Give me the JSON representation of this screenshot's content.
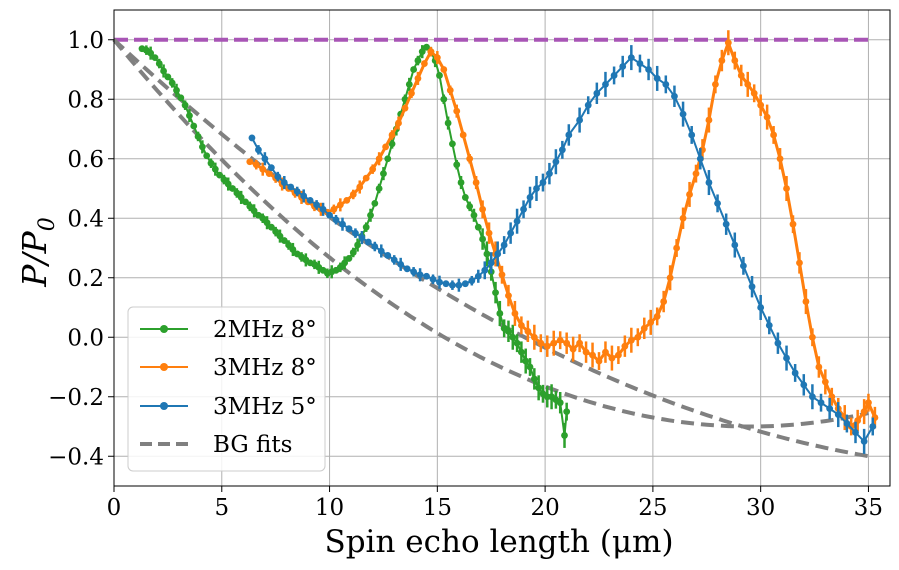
{
  "chart_data": {
    "type": "line",
    "xlabel": "Spin echo length (μm)",
    "ylabel": "P/P0",
    "ylabel_parts": {
      "main": "P/P",
      "sub": "0"
    },
    "xlim": [
      0,
      36
    ],
    "ylim": [
      -0.5,
      1.1
    ],
    "xticks": [
      0,
      5,
      10,
      15,
      20,
      25,
      30,
      35
    ],
    "yticks": [
      1.0,
      0.8,
      0.6,
      0.4,
      0.2,
      0.0,
      -0.2,
      -0.4
    ],
    "xtick_labels": [
      "0",
      "5",
      "10",
      "15",
      "20",
      "25",
      "30",
      "35"
    ],
    "ytick_labels": [
      "1.0",
      "0.8",
      "0.6",
      "0.4",
      "0.2",
      "0.0",
      "−0.2",
      "−0.4"
    ],
    "grid": true,
    "legend_position": "lower-left",
    "reference_line": {
      "y": 1.0,
      "x_range": [
        0,
        35
      ],
      "color": "#a855b5",
      "style": "dashed"
    },
    "series": [
      {
        "name": "2MHz 8°",
        "color": "#2ca02c",
        "points": [
          [
            1.3,
            0.97
          ],
          [
            1.5,
            0.965
          ],
          [
            1.7,
            0.955
          ],
          [
            1.9,
            0.94
          ],
          [
            2.1,
            0.92
          ],
          [
            2.3,
            0.895
          ],
          [
            2.5,
            0.875
          ],
          [
            2.7,
            0.855
          ],
          [
            2.9,
            0.83
          ],
          [
            3.1,
            0.805
          ],
          [
            3.3,
            0.78
          ],
          [
            3.5,
            0.745
          ],
          [
            3.7,
            0.71
          ],
          [
            3.9,
            0.675
          ],
          [
            4.1,
            0.64
          ],
          [
            4.3,
            0.61
          ],
          [
            4.5,
            0.585
          ],
          [
            4.7,
            0.565
          ],
          [
            4.9,
            0.545
          ],
          [
            5.1,
            0.53
          ],
          [
            5.3,
            0.515
          ],
          [
            5.5,
            0.5
          ],
          [
            5.7,
            0.485
          ],
          [
            5.9,
            0.47
          ],
          [
            6.1,
            0.455
          ],
          [
            6.3,
            0.44
          ],
          [
            6.5,
            0.425
          ],
          [
            6.7,
            0.41
          ],
          [
            6.9,
            0.4
          ],
          [
            7.1,
            0.385
          ],
          [
            7.3,
            0.37
          ],
          [
            7.5,
            0.355
          ],
          [
            7.7,
            0.34
          ],
          [
            7.9,
            0.325
          ],
          [
            8.1,
            0.31
          ],
          [
            8.3,
            0.295
          ],
          [
            8.5,
            0.28
          ],
          [
            8.7,
            0.27
          ],
          [
            8.9,
            0.26
          ],
          [
            9.1,
            0.25
          ],
          [
            9.3,
            0.245
          ],
          [
            9.5,
            0.235
          ],
          [
            9.7,
            0.225
          ],
          [
            9.9,
            0.215
          ],
          [
            10.1,
            0.22
          ],
          [
            10.3,
            0.225
          ],
          [
            10.5,
            0.235
          ],
          [
            10.7,
            0.25
          ],
          [
            10.9,
            0.265
          ],
          [
            11.1,
            0.285
          ],
          [
            11.3,
            0.31
          ],
          [
            11.5,
            0.34
          ],
          [
            11.7,
            0.37
          ],
          [
            11.9,
            0.41
          ],
          [
            12.1,
            0.45
          ],
          [
            12.3,
            0.5
          ],
          [
            12.5,
            0.55
          ],
          [
            12.7,
            0.6
          ],
          [
            12.9,
            0.65
          ],
          [
            13.1,
            0.7
          ],
          [
            13.3,
            0.75
          ],
          [
            13.5,
            0.8
          ],
          [
            13.7,
            0.85
          ],
          [
            13.9,
            0.9
          ],
          [
            14.1,
            0.93
          ],
          [
            14.3,
            0.96
          ],
          [
            14.5,
            0.975
          ],
          [
            14.7,
            0.96
          ],
          [
            14.9,
            0.93
          ],
          [
            15.1,
            0.88
          ],
          [
            15.3,
            0.8
          ],
          [
            15.5,
            0.72
          ],
          [
            15.7,
            0.65
          ],
          [
            15.9,
            0.58
          ],
          [
            16.1,
            0.52
          ],
          [
            16.3,
            0.47
          ],
          [
            16.5,
            0.44
          ],
          [
            16.7,
            0.41
          ],
          [
            16.9,
            0.37
          ],
          [
            17.1,
            0.33
          ],
          [
            17.3,
            0.28
          ],
          [
            17.5,
            0.22
          ],
          [
            17.7,
            0.15
          ],
          [
            17.9,
            0.08
          ],
          [
            18.1,
            0.03
          ],
          [
            18.3,
            0.02
          ],
          [
            18.5,
            0.0
          ],
          [
            18.7,
            -0.02
          ],
          [
            18.9,
            -0.05
          ],
          [
            19.1,
            -0.08
          ],
          [
            19.3,
            -0.1
          ],
          [
            19.5,
            -0.14
          ],
          [
            19.7,
            -0.17
          ],
          [
            19.9,
            -0.19
          ],
          [
            20.1,
            -0.2
          ],
          [
            20.3,
            -0.2
          ],
          [
            20.5,
            -0.21
          ],
          [
            20.7,
            -0.22
          ],
          [
            20.9,
            -0.33
          ],
          [
            21.0,
            -0.25
          ]
        ]
      },
      {
        "name": "3MHz 8°",
        "color": "#ff7f0e",
        "points": [
          [
            6.3,
            0.59
          ],
          [
            6.6,
            0.58
          ],
          [
            6.9,
            0.565
          ],
          [
            7.2,
            0.55
          ],
          [
            7.5,
            0.535
          ],
          [
            7.8,
            0.515
          ],
          [
            8.1,
            0.5
          ],
          [
            8.4,
            0.485
          ],
          [
            8.7,
            0.47
          ],
          [
            9.0,
            0.455
          ],
          [
            9.3,
            0.44
          ],
          [
            9.6,
            0.43
          ],
          [
            9.9,
            0.42
          ],
          [
            10.2,
            0.43
          ],
          [
            10.5,
            0.445
          ],
          [
            10.8,
            0.46
          ],
          [
            11.1,
            0.48
          ],
          [
            11.4,
            0.505
          ],
          [
            11.7,
            0.535
          ],
          [
            12.0,
            0.565
          ],
          [
            12.3,
            0.6
          ],
          [
            12.6,
            0.64
          ],
          [
            12.9,
            0.68
          ],
          [
            13.2,
            0.72
          ],
          [
            13.5,
            0.77
          ],
          [
            13.8,
            0.82
          ],
          [
            14.1,
            0.87
          ],
          [
            14.4,
            0.92
          ],
          [
            14.7,
            0.96
          ],
          [
            15.0,
            0.94
          ],
          [
            15.3,
            0.9
          ],
          [
            15.6,
            0.83
          ],
          [
            15.9,
            0.76
          ],
          [
            16.2,
            0.68
          ],
          [
            16.5,
            0.6
          ],
          [
            16.8,
            0.52
          ],
          [
            17.1,
            0.43
          ],
          [
            17.4,
            0.35
          ],
          [
            17.7,
            0.28
          ],
          [
            18.0,
            0.21
          ],
          [
            18.3,
            0.14
          ],
          [
            18.6,
            0.08
          ],
          [
            18.9,
            0.04
          ],
          [
            19.2,
            0.02
          ],
          [
            19.5,
            0.0
          ],
          [
            19.8,
            -0.02
          ],
          [
            20.1,
            -0.03
          ],
          [
            20.4,
            -0.02
          ],
          [
            20.7,
            -0.01
          ],
          [
            21.0,
            -0.02
          ],
          [
            21.3,
            -0.04
          ],
          [
            21.6,
            -0.02
          ],
          [
            21.9,
            -0.05
          ],
          [
            22.2,
            -0.06
          ],
          [
            22.5,
            -0.08
          ],
          [
            22.8,
            -0.05
          ],
          [
            23.1,
            -0.07
          ],
          [
            23.4,
            -0.06
          ],
          [
            23.7,
            -0.03
          ],
          [
            24.0,
            -0.01
          ],
          [
            24.3,
            0.0
          ],
          [
            24.6,
            0.03
          ],
          [
            24.9,
            0.05
          ],
          [
            25.2,
            0.07
          ],
          [
            25.5,
            0.12
          ],
          [
            25.8,
            0.2
          ],
          [
            26.1,
            0.3
          ],
          [
            26.4,
            0.4
          ],
          [
            26.7,
            0.48
          ],
          [
            27.0,
            0.55
          ],
          [
            27.3,
            0.63
          ],
          [
            27.6,
            0.73
          ],
          [
            27.9,
            0.85
          ],
          [
            28.2,
            0.93
          ],
          [
            28.5,
            0.99
          ],
          [
            28.8,
            0.93
          ],
          [
            29.1,
            0.88
          ],
          [
            29.4,
            0.85
          ],
          [
            29.7,
            0.82
          ],
          [
            30.0,
            0.78
          ],
          [
            30.3,
            0.74
          ],
          [
            30.6,
            0.68
          ],
          [
            30.9,
            0.6
          ],
          [
            31.2,
            0.5
          ],
          [
            31.5,
            0.38
          ],
          [
            31.8,
            0.25
          ],
          [
            32.1,
            0.12
          ],
          [
            32.4,
            0.0
          ],
          [
            32.7,
            -0.1
          ],
          [
            33.0,
            -0.15
          ],
          [
            33.3,
            -0.2
          ],
          [
            33.6,
            -0.24
          ],
          [
            33.9,
            -0.27
          ],
          [
            34.2,
            -0.3
          ],
          [
            34.5,
            -0.28
          ],
          [
            34.8,
            -0.25
          ],
          [
            35.0,
            -0.22
          ],
          [
            35.3,
            -0.27
          ]
        ]
      },
      {
        "name": "3MHz 5°",
        "color": "#1f77b4",
        "points": [
          [
            6.4,
            0.67
          ],
          [
            6.7,
            0.63
          ],
          [
            7.0,
            0.6
          ],
          [
            7.3,
            0.57
          ],
          [
            7.6,
            0.54
          ],
          [
            7.9,
            0.52
          ],
          [
            8.2,
            0.505
          ],
          [
            8.5,
            0.49
          ],
          [
            8.8,
            0.475
          ],
          [
            9.1,
            0.46
          ],
          [
            9.4,
            0.445
          ],
          [
            9.7,
            0.43
          ],
          [
            10.0,
            0.41
          ],
          [
            10.3,
            0.395
          ],
          [
            10.6,
            0.38
          ],
          [
            10.9,
            0.365
          ],
          [
            11.2,
            0.35
          ],
          [
            11.5,
            0.335
          ],
          [
            11.8,
            0.32
          ],
          [
            12.1,
            0.305
          ],
          [
            12.4,
            0.29
          ],
          [
            12.7,
            0.275
          ],
          [
            13.0,
            0.26
          ],
          [
            13.3,
            0.245
          ],
          [
            13.6,
            0.23
          ],
          [
            13.9,
            0.22
          ],
          [
            14.2,
            0.21
          ],
          [
            14.5,
            0.205
          ],
          [
            14.8,
            0.195
          ],
          [
            15.1,
            0.185
          ],
          [
            15.4,
            0.18
          ],
          [
            15.7,
            0.175
          ],
          [
            16.0,
            0.175
          ],
          [
            16.3,
            0.18
          ],
          [
            16.6,
            0.19
          ],
          [
            16.9,
            0.205
          ],
          [
            17.2,
            0.225
          ],
          [
            17.5,
            0.25
          ],
          [
            17.8,
            0.28
          ],
          [
            18.1,
            0.31
          ],
          [
            18.4,
            0.35
          ],
          [
            18.7,
            0.39
          ],
          [
            19.0,
            0.43
          ],
          [
            19.3,
            0.47
          ],
          [
            19.6,
            0.5
          ],
          [
            19.9,
            0.52
          ],
          [
            20.2,
            0.55
          ],
          [
            20.5,
            0.59
          ],
          [
            20.8,
            0.63
          ],
          [
            21.1,
            0.68
          ],
          [
            21.6,
            0.73
          ],
          [
            22.0,
            0.78
          ],
          [
            22.4,
            0.82
          ],
          [
            22.8,
            0.85
          ],
          [
            23.2,
            0.88
          ],
          [
            23.6,
            0.91
          ],
          [
            24.0,
            0.94
          ],
          [
            24.4,
            0.92
          ],
          [
            24.8,
            0.9
          ],
          [
            25.2,
            0.87
          ],
          [
            25.6,
            0.85
          ],
          [
            26.0,
            0.81
          ],
          [
            26.4,
            0.75
          ],
          [
            26.8,
            0.68
          ],
          [
            27.2,
            0.6
          ],
          [
            27.6,
            0.52
          ],
          [
            28.0,
            0.45
          ],
          [
            28.4,
            0.38
          ],
          [
            28.8,
            0.31
          ],
          [
            29.2,
            0.24
          ],
          [
            29.6,
            0.17
          ],
          [
            30.0,
            0.1
          ],
          [
            30.4,
            0.04
          ],
          [
            30.8,
            -0.02
          ],
          [
            31.2,
            -0.07
          ],
          [
            31.6,
            -0.12
          ],
          [
            32.0,
            -0.16
          ],
          [
            32.4,
            -0.2
          ],
          [
            32.8,
            -0.22
          ],
          [
            33.2,
            -0.24
          ],
          [
            33.6,
            -0.26
          ],
          [
            34.0,
            -0.29
          ],
          [
            34.4,
            -0.32
          ],
          [
            34.8,
            -0.35
          ],
          [
            35.2,
            -0.3
          ]
        ]
      }
    ],
    "bg_fits": {
      "name": "BG fits",
      "color": "#808080",
      "curves": [
        {
          "form": "quadratic",
          "x_range": [
            0,
            35
          ],
          "y0": 1.0,
          "xmin": 29.5,
          "ymin": -0.3
        },
        {
          "form": "quadratic",
          "x_range": [
            0,
            35
          ],
          "y0": 1.0,
          "xmin": 43.0,
          "ymin": -0.45
        }
      ]
    }
  }
}
